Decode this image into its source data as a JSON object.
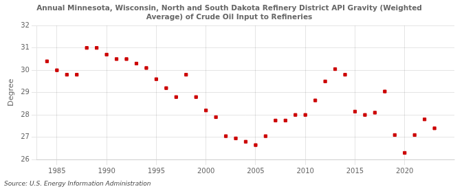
{
  "chart_data": {
    "type": "scatter",
    "title": "Annual Minnesota, Wisconsin, North and South Dakota Refinery District API Gravity (Weighted\nAverage) of Crude Oil Input to Refineries",
    "ylabel": "Degree",
    "annotations": [
      "Source: U.S. Energy Information Administration"
    ],
    "x": [
      1984,
      1985,
      1986,
      1987,
      1988,
      1989,
      1990,
      1991,
      1992,
      1993,
      1994,
      1995,
      1996,
      1997,
      1998,
      1999,
      2000,
      2001,
      2002,
      2003,
      2004,
      2005,
      2006,
      2007,
      2008,
      2009,
      2010,
      2011,
      2012,
      2013,
      2014,
      2015,
      2016,
      2017,
      2018,
      2019,
      2020,
      2021,
      2022,
      2023
    ],
    "values": [
      30.4,
      30.0,
      29.8,
      29.8,
      31.0,
      31.0,
      30.7,
      30.5,
      30.5,
      30.3,
      30.1,
      29.6,
      29.2,
      28.8,
      29.8,
      28.8,
      28.2,
      27.9,
      27.05,
      26.95,
      26.8,
      26.65,
      27.05,
      27.75,
      27.75,
      28.0,
      28.0,
      28.65,
      29.5,
      30.05,
      29.8,
      28.15,
      28.0,
      28.1,
      29.05,
      27.1,
      26.3,
      27.1,
      27.8,
      27.4
    ],
    "color": "#cc0000",
    "marker": "square",
    "xlim": [
      1983,
      2025
    ],
    "xticks": [
      1985,
      1990,
      1995,
      2000,
      2005,
      2010,
      2015,
      2020
    ],
    "ylim": [
      26,
      32
    ],
    "yticks": [
      26,
      27,
      28,
      29,
      30,
      31,
      32
    ],
    "grid": true
  }
}
